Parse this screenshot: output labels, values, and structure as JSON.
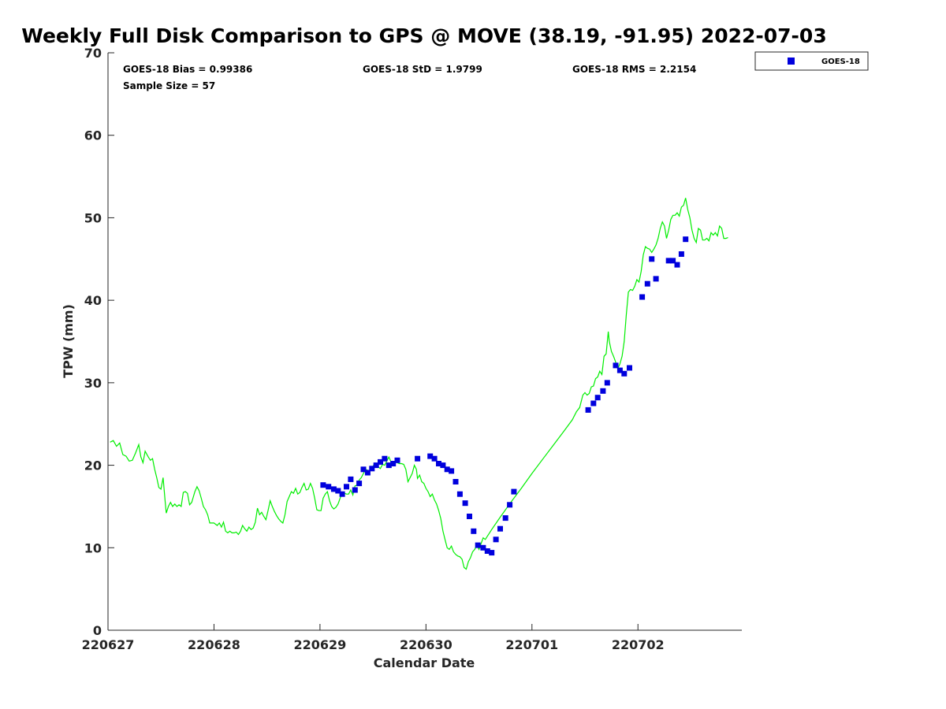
{
  "chart_data": {
    "type": "scatter",
    "title": "Weekly Full Disk Comparison to GPS @ MOVE (38.19, -91.95) 2022-07-03",
    "xlabel": "Calendar Date",
    "ylabel": "TPW (mm)",
    "xlim": [
      0,
      5.98
    ],
    "ylim": [
      0,
      70
    ],
    "x_ticks": [
      {
        "v": 0,
        "label": "220627"
      },
      {
        "v": 1,
        "label": "220628"
      },
      {
        "v": 2,
        "label": "220629"
      },
      {
        "v": 3,
        "label": "220630"
      },
      {
        "v": 4,
        "label": "220701"
      },
      {
        "v": 5,
        "label": "220702"
      }
    ],
    "y_ticks": [
      {
        "v": 0,
        "label": "0"
      },
      {
        "v": 10,
        "label": "10"
      },
      {
        "v": 20,
        "label": "20"
      },
      {
        "v": 30,
        "label": "30"
      },
      {
        "v": 40,
        "label": "40"
      },
      {
        "v": 50,
        "label": "50"
      },
      {
        "v": 60,
        "label": "60"
      },
      {
        "v": 70,
        "label": "70"
      }
    ],
    "stats": {
      "bias": "GOES-18 Bias = 0.99386",
      "std": "GOES-18 StD = 1.9799",
      "rms": "GOES-18 RMS = 2.2154",
      "sample": "Sample Size = 57"
    },
    "legend": {
      "position": "top-right",
      "entries": [
        "GOES-18"
      ]
    },
    "colors": {
      "gps_line": "#00ee00",
      "goes18": "#0000dd"
    },
    "gps_line": [
      [
        0.02,
        22.8
      ],
      [
        0.05,
        23.0
      ],
      [
        0.08,
        22.3
      ],
      [
        0.11,
        22.7
      ],
      [
        0.14,
        21.3
      ],
      [
        0.17,
        21.1
      ],
      [
        0.2,
        20.5
      ],
      [
        0.23,
        20.6
      ],
      [
        0.26,
        21.5
      ],
      [
        0.29,
        22.5
      ],
      [
        0.31,
        21.0
      ],
      [
        0.33,
        20.3
      ],
      [
        0.35,
        21.7
      ],
      [
        0.38,
        21.0
      ],
      [
        0.4,
        20.6
      ],
      [
        0.42,
        20.8
      ],
      [
        0.44,
        19.5
      ],
      [
        0.46,
        18.5
      ],
      [
        0.48,
        17.3
      ],
      [
        0.5,
        17.1
      ],
      [
        0.52,
        18.5
      ],
      [
        0.54,
        15.5
      ],
      [
        0.55,
        14.2
      ],
      [
        0.57,
        15.0
      ],
      [
        0.59,
        15.5
      ],
      [
        0.61,
        15.0
      ],
      [
        0.63,
        15.3
      ],
      [
        0.65,
        15.0
      ],
      [
        0.67,
        15.2
      ],
      [
        0.69,
        15.0
      ],
      [
        0.71,
        16.7
      ],
      [
        0.73,
        16.8
      ],
      [
        0.75,
        16.6
      ],
      [
        0.77,
        15.2
      ],
      [
        0.79,
        15.5
      ],
      [
        0.82,
        16.8
      ],
      [
        0.84,
        17.4
      ],
      [
        0.86,
        16.9
      ],
      [
        0.88,
        16.0
      ],
      [
        0.9,
        15.0
      ],
      [
        0.92,
        14.6
      ],
      [
        0.94,
        14.0
      ],
      [
        0.96,
        13.0
      ],
      [
        0.98,
        13.0
      ],
      [
        1.0,
        13.0
      ],
      [
        1.03,
        12.7
      ],
      [
        1.05,
        13.0
      ],
      [
        1.07,
        12.5
      ],
      [
        1.09,
        13.1
      ],
      [
        1.11,
        12.0
      ],
      [
        1.13,
        11.8
      ],
      [
        1.15,
        12.0
      ],
      [
        1.17,
        11.8
      ],
      [
        1.19,
        11.8
      ],
      [
        1.21,
        11.9
      ],
      [
        1.23,
        11.6
      ],
      [
        1.25,
        12.0
      ],
      [
        1.27,
        12.7
      ],
      [
        1.29,
        12.3
      ],
      [
        1.31,
        12.0
      ],
      [
        1.33,
        12.5
      ],
      [
        1.35,
        12.2
      ],
      [
        1.37,
        12.4
      ],
      [
        1.39,
        13.1
      ],
      [
        1.41,
        14.8
      ],
      [
        1.43,
        14.0
      ],
      [
        1.45,
        14.3
      ],
      [
        1.47,
        13.8
      ],
      [
        1.49,
        13.4
      ],
      [
        1.51,
        14.5
      ],
      [
        1.53,
        15.7
      ],
      [
        1.55,
        15.0
      ],
      [
        1.57,
        14.4
      ],
      [
        1.59,
        13.9
      ],
      [
        1.61,
        13.5
      ],
      [
        1.63,
        13.2
      ],
      [
        1.65,
        13.0
      ],
      [
        1.67,
        14.0
      ],
      [
        1.69,
        15.6
      ],
      [
        1.71,
        16.2
      ],
      [
        1.73,
        16.8
      ],
      [
        1.75,
        16.6
      ],
      [
        1.77,
        17.2
      ],
      [
        1.79,
        16.5
      ],
      [
        1.81,
        16.7
      ],
      [
        1.83,
        17.3
      ],
      [
        1.85,
        17.8
      ],
      [
        1.87,
        17.0
      ],
      [
        1.89,
        17.1
      ],
      [
        1.91,
        17.8
      ],
      [
        1.93,
        17.2
      ],
      [
        1.95,
        16.0
      ],
      [
        1.97,
        14.6
      ],
      [
        1.99,
        14.5
      ],
      [
        2.01,
        14.5
      ],
      [
        2.03,
        16.0
      ],
      [
        2.05,
        16.5
      ],
      [
        2.07,
        16.8
      ],
      [
        2.09,
        15.7
      ],
      [
        2.11,
        15.0
      ],
      [
        2.13,
        14.7
      ],
      [
        2.15,
        14.9
      ],
      [
        2.17,
        15.3
      ],
      [
        2.19,
        16.0
      ],
      [
        2.21,
        16.7
      ],
      [
        2.23,
        16.6
      ],
      [
        2.25,
        16.5
      ],
      [
        2.27,
        16.5
      ],
      [
        2.29,
        17.0
      ],
      [
        2.31,
        16.4
      ],
      [
        2.33,
        17.5
      ],
      [
        2.35,
        17.6
      ],
      [
        2.37,
        18.2
      ],
      [
        2.39,
        18.5
      ],
      [
        2.41,
        19.0
      ],
      [
        2.43,
        19.5
      ],
      [
        2.45,
        19.4
      ],
      [
        2.47,
        19.3
      ],
      [
        2.49,
        19.6
      ],
      [
        2.51,
        20.1
      ],
      [
        2.53,
        20.0
      ],
      [
        2.55,
        19.8
      ],
      [
        2.57,
        19.6
      ],
      [
        2.59,
        20.1
      ],
      [
        2.61,
        20.0
      ],
      [
        2.63,
        20.5
      ],
      [
        2.65,
        21.0
      ],
      [
        2.67,
        20.4
      ],
      [
        2.69,
        20.2
      ],
      [
        2.71,
        20.4
      ],
      [
        2.73,
        20.3
      ],
      [
        2.75,
        20.2
      ],
      [
        2.77,
        20.2
      ],
      [
        2.79,
        20.1
      ],
      [
        2.81,
        19.5
      ],
      [
        2.83,
        18.0
      ],
      [
        2.85,
        18.5
      ],
      [
        2.87,
        19.0
      ],
      [
        2.89,
        20.0
      ],
      [
        2.91,
        19.5
      ],
      [
        2.92,
        18.4
      ],
      [
        2.94,
        18.8
      ],
      [
        2.96,
        18.0
      ],
      [
        2.98,
        17.8
      ],
      [
        3.0,
        17.2
      ],
      [
        3.02,
        16.8
      ],
      [
        3.04,
        16.2
      ],
      [
        3.06,
        16.5
      ],
      [
        3.08,
        15.8
      ],
      [
        3.1,
        15.3
      ],
      [
        3.12,
        14.5
      ],
      [
        3.14,
        13.5
      ],
      [
        3.16,
        12.0
      ],
      [
        3.18,
        11.0
      ],
      [
        3.2,
        10.0
      ],
      [
        3.22,
        9.8
      ],
      [
        3.24,
        10.2
      ],
      [
        3.26,
        9.5
      ],
      [
        3.28,
        9.2
      ],
      [
        3.3,
        9.0
      ],
      [
        3.32,
        8.9
      ],
      [
        3.34,
        8.6
      ],
      [
        3.36,
        7.6
      ],
      [
        3.38,
        7.4
      ],
      [
        3.4,
        8.3
      ],
      [
        3.42,
        8.8
      ],
      [
        3.44,
        9.5
      ],
      [
        3.46,
        9.8
      ],
      [
        3.48,
        10.4
      ],
      [
        3.5,
        9.8
      ],
      [
        3.52,
        10.5
      ],
      [
        3.54,
        11.2
      ],
      [
        3.56,
        11.0
      ],
      [
        3.58,
        11.4
      ],
      [
        3.62,
        12.2
      ],
      [
        3.7,
        13.7
      ],
      [
        3.8,
        15.5
      ],
      [
        3.9,
        17.2
      ],
      [
        4.0,
        19.0
      ],
      [
        4.1,
        20.7
      ],
      [
        4.2,
        22.4
      ],
      [
        4.3,
        24.1
      ],
      [
        4.38,
        25.5
      ],
      [
        4.42,
        26.5
      ],
      [
        4.45,
        27.0
      ],
      [
        4.48,
        28.5
      ],
      [
        4.5,
        28.8
      ],
      [
        4.52,
        28.5
      ],
      [
        4.54,
        28.7
      ],
      [
        4.56,
        29.5
      ],
      [
        4.58,
        29.6
      ],
      [
        4.6,
        30.5
      ],
      [
        4.62,
        30.7
      ],
      [
        4.64,
        31.4
      ],
      [
        4.66,
        31.0
      ],
      [
        4.68,
        33.2
      ],
      [
        4.7,
        33.5
      ],
      [
        4.72,
        36.2
      ],
      [
        4.73,
        35.0
      ],
      [
        4.75,
        33.8
      ],
      [
        4.77,
        33.2
      ],
      [
        4.79,
        32.5
      ],
      [
        4.81,
        31.7
      ],
      [
        4.83,
        32.3
      ],
      [
        4.85,
        33.2
      ],
      [
        4.87,
        35.0
      ],
      [
        4.89,
        38.3
      ],
      [
        4.91,
        41.0
      ],
      [
        4.93,
        41.3
      ],
      [
        4.95,
        41.2
      ],
      [
        4.97,
        41.7
      ],
      [
        4.99,
        42.5
      ],
      [
        5.01,
        42.2
      ],
      [
        5.03,
        43.5
      ],
      [
        5.05,
        45.5
      ],
      [
        5.07,
        46.5
      ],
      [
        5.09,
        46.3
      ],
      [
        5.11,
        46.2
      ],
      [
        5.13,
        45.8
      ],
      [
        5.15,
        46.2
      ],
      [
        5.17,
        46.7
      ],
      [
        5.19,
        47.5
      ],
      [
        5.21,
        48.7
      ],
      [
        5.23,
        49.5
      ],
      [
        5.25,
        49.0
      ],
      [
        5.27,
        47.5
      ],
      [
        5.29,
        48.5
      ],
      [
        5.31,
        49.8
      ],
      [
        5.33,
        50.3
      ],
      [
        5.35,
        50.3
      ],
      [
        5.37,
        50.6
      ],
      [
        5.39,
        50.2
      ],
      [
        5.41,
        51.3
      ],
      [
        5.43,
        51.5
      ],
      [
        5.45,
        52.4
      ],
      [
        5.47,
        51.0
      ],
      [
        5.49,
        50.0
      ],
      [
        5.51,
        48.5
      ],
      [
        5.53,
        47.5
      ],
      [
        5.55,
        47.0
      ],
      [
        5.57,
        48.7
      ],
      [
        5.59,
        48.5
      ],
      [
        5.61,
        47.3
      ],
      [
        5.63,
        47.3
      ],
      [
        5.65,
        47.5
      ],
      [
        5.67,
        47.2
      ],
      [
        5.69,
        48.2
      ],
      [
        5.71,
        47.9
      ],
      [
        5.73,
        48.2
      ],
      [
        5.75,
        47.8
      ],
      [
        5.77,
        49.0
      ],
      [
        5.79,
        48.7
      ],
      [
        5.81,
        47.5
      ],
      [
        5.83,
        47.5
      ],
      [
        5.85,
        47.6
      ]
    ],
    "series": [
      {
        "name": "GOES-18",
        "points": [
          [
            2.03,
            17.6
          ],
          [
            2.08,
            17.4
          ],
          [
            2.13,
            17.1
          ],
          [
            2.17,
            16.9
          ],
          [
            2.21,
            16.5
          ],
          [
            2.25,
            17.4
          ],
          [
            2.29,
            18.3
          ],
          [
            2.33,
            17.0
          ],
          [
            2.37,
            17.8
          ],
          [
            2.41,
            19.5
          ],
          [
            2.45,
            19.1
          ],
          [
            2.49,
            19.6
          ],
          [
            2.53,
            20.0
          ],
          [
            2.57,
            20.4
          ],
          [
            2.61,
            20.8
          ],
          [
            2.65,
            20.0
          ],
          [
            2.69,
            20.2
          ],
          [
            2.73,
            20.6
          ],
          [
            2.92,
            20.8
          ],
          [
            3.04,
            21.1
          ],
          [
            3.08,
            20.8
          ],
          [
            3.12,
            20.2
          ],
          [
            3.16,
            20.0
          ],
          [
            3.2,
            19.5
          ],
          [
            3.24,
            19.3
          ],
          [
            3.28,
            18.0
          ],
          [
            3.32,
            16.5
          ],
          [
            3.37,
            15.4
          ],
          [
            3.41,
            13.8
          ],
          [
            3.45,
            12.0
          ],
          [
            3.49,
            10.3
          ],
          [
            3.54,
            10.0
          ],
          [
            3.58,
            9.6
          ],
          [
            3.62,
            9.4
          ],
          [
            3.66,
            11.0
          ],
          [
            3.7,
            12.3
          ],
          [
            3.75,
            13.6
          ],
          [
            3.79,
            15.2
          ],
          [
            3.83,
            16.8
          ],
          [
            4.53,
            26.7
          ],
          [
            4.58,
            27.5
          ],
          [
            4.62,
            28.2
          ],
          [
            4.67,
            29.0
          ],
          [
            4.71,
            30.0
          ],
          [
            4.79,
            32.1
          ],
          [
            4.83,
            31.5
          ],
          [
            4.87,
            31.1
          ],
          [
            4.92,
            31.8
          ],
          [
            5.04,
            40.4
          ],
          [
            5.09,
            42.0
          ],
          [
            5.13,
            45.0
          ],
          [
            5.17,
            42.6
          ],
          [
            5.29,
            44.8
          ],
          [
            5.33,
            44.8
          ],
          [
            5.37,
            44.3
          ],
          [
            5.41,
            45.6
          ],
          [
            5.45,
            47.4
          ]
        ]
      }
    ]
  }
}
